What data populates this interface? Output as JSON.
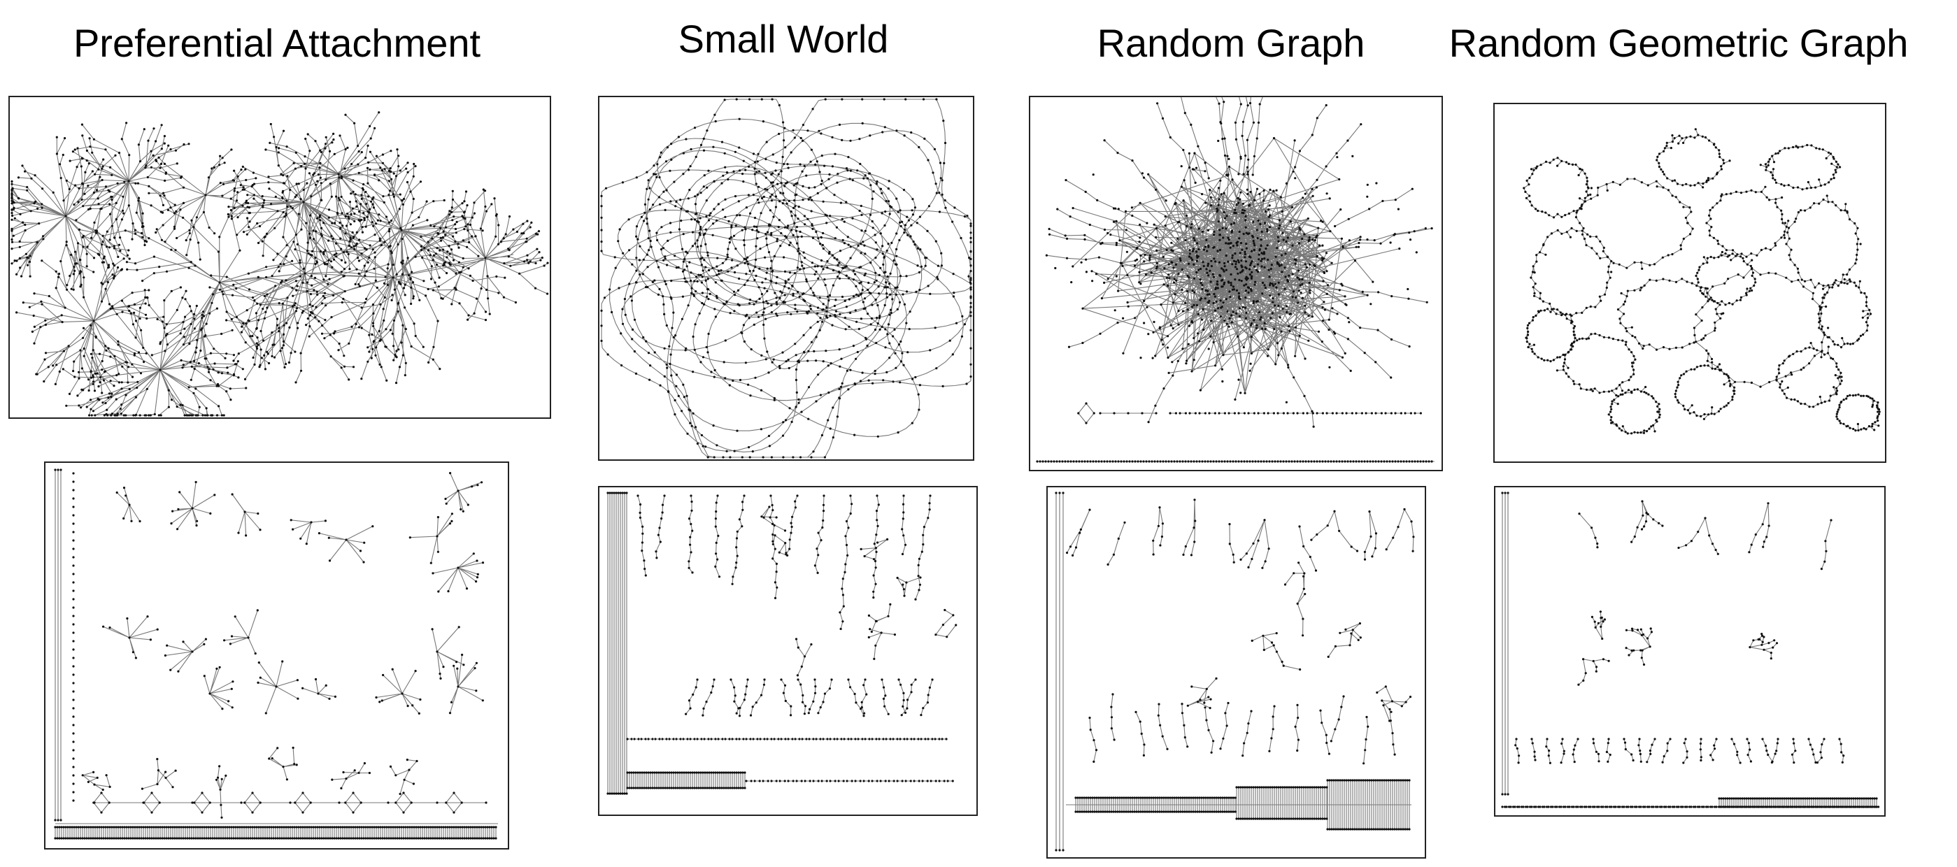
{
  "columns": [
    {
      "title": "Preferential Attachment",
      "layout": "hubs"
    },
    {
      "title": "Small World",
      "layout": "loops"
    },
    {
      "title": "Random Graph",
      "layout": "hairball"
    },
    {
      "title": "Random Geometric Graph",
      "layout": "mesh"
    }
  ],
  "colors": {
    "edge": "#777777",
    "node": "#111111",
    "frame": "#222222"
  }
}
